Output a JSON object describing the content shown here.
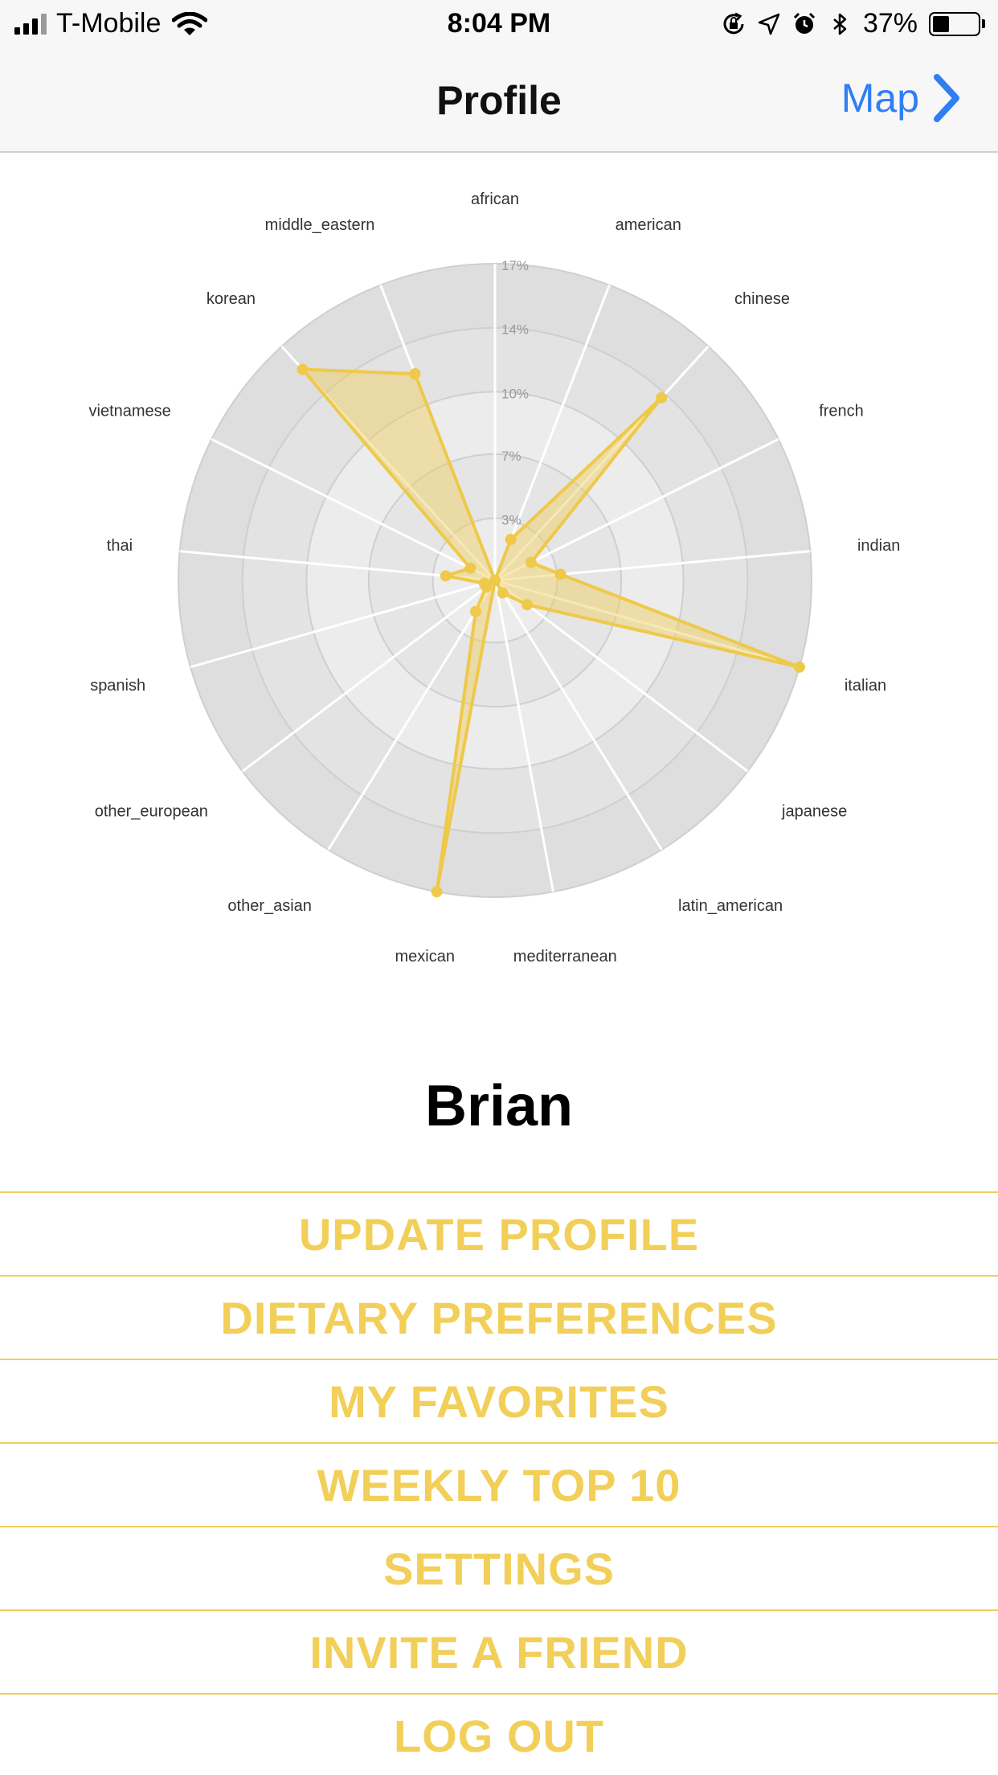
{
  "status_bar": {
    "carrier": "T-Mobile",
    "time": "8:04 PM",
    "battery_percent": "37%",
    "battery_level": 0.37,
    "icons": [
      "signal-icon",
      "wifi-icon",
      "orientation-lock-icon",
      "location-arrow-icon",
      "alarm-icon",
      "bluetooth-icon",
      "battery-icon"
    ]
  },
  "nav": {
    "title": "Profile",
    "right_button": "Map",
    "right_icon": "chevron-right-icon"
  },
  "chart_data": {
    "type": "radar",
    "categories": [
      "african",
      "american",
      "chinese",
      "french",
      "indian",
      "italian",
      "japanese",
      "latin_american",
      "mediterranean",
      "mexican",
      "other_asian",
      "other_european",
      "spanish",
      "thai",
      "vietnamese",
      "korean",
      "middle_eastern"
    ],
    "values": [
      0,
      2.4,
      13.5,
      2.2,
      3.6,
      17.3,
      2.2,
      0.8,
      0,
      17.3,
      2.0,
      0.6,
      0.6,
      2.7,
      1.5,
      15.6,
      12.1
    ],
    "radial_ticks": [
      "3%",
      "7%",
      "10%",
      "14%",
      "17%"
    ],
    "tick_values": [
      3.4,
      6.9,
      10.3,
      13.8,
      17.3
    ],
    "max": 17.3,
    "fill_color": "#f0cd58",
    "grid": true
  },
  "user": {
    "name": "Brian"
  },
  "menu": {
    "items": [
      {
        "label": "UPDATE PROFILE",
        "name": "update-profile-button"
      },
      {
        "label": "DIETARY PREFERENCES",
        "name": "dietary-preferences-button"
      },
      {
        "label": "MY FAVORITES",
        "name": "my-favorites-button"
      },
      {
        "label": "WEEKLY TOP 10",
        "name": "weekly-top-10-button"
      },
      {
        "label": "SETTINGS",
        "name": "settings-button"
      },
      {
        "label": "INVITE A FRIEND",
        "name": "invite-a-friend-button"
      },
      {
        "label": "LOG OUT",
        "name": "log-out-button"
      }
    ],
    "accent_color": "#f2cf58"
  }
}
